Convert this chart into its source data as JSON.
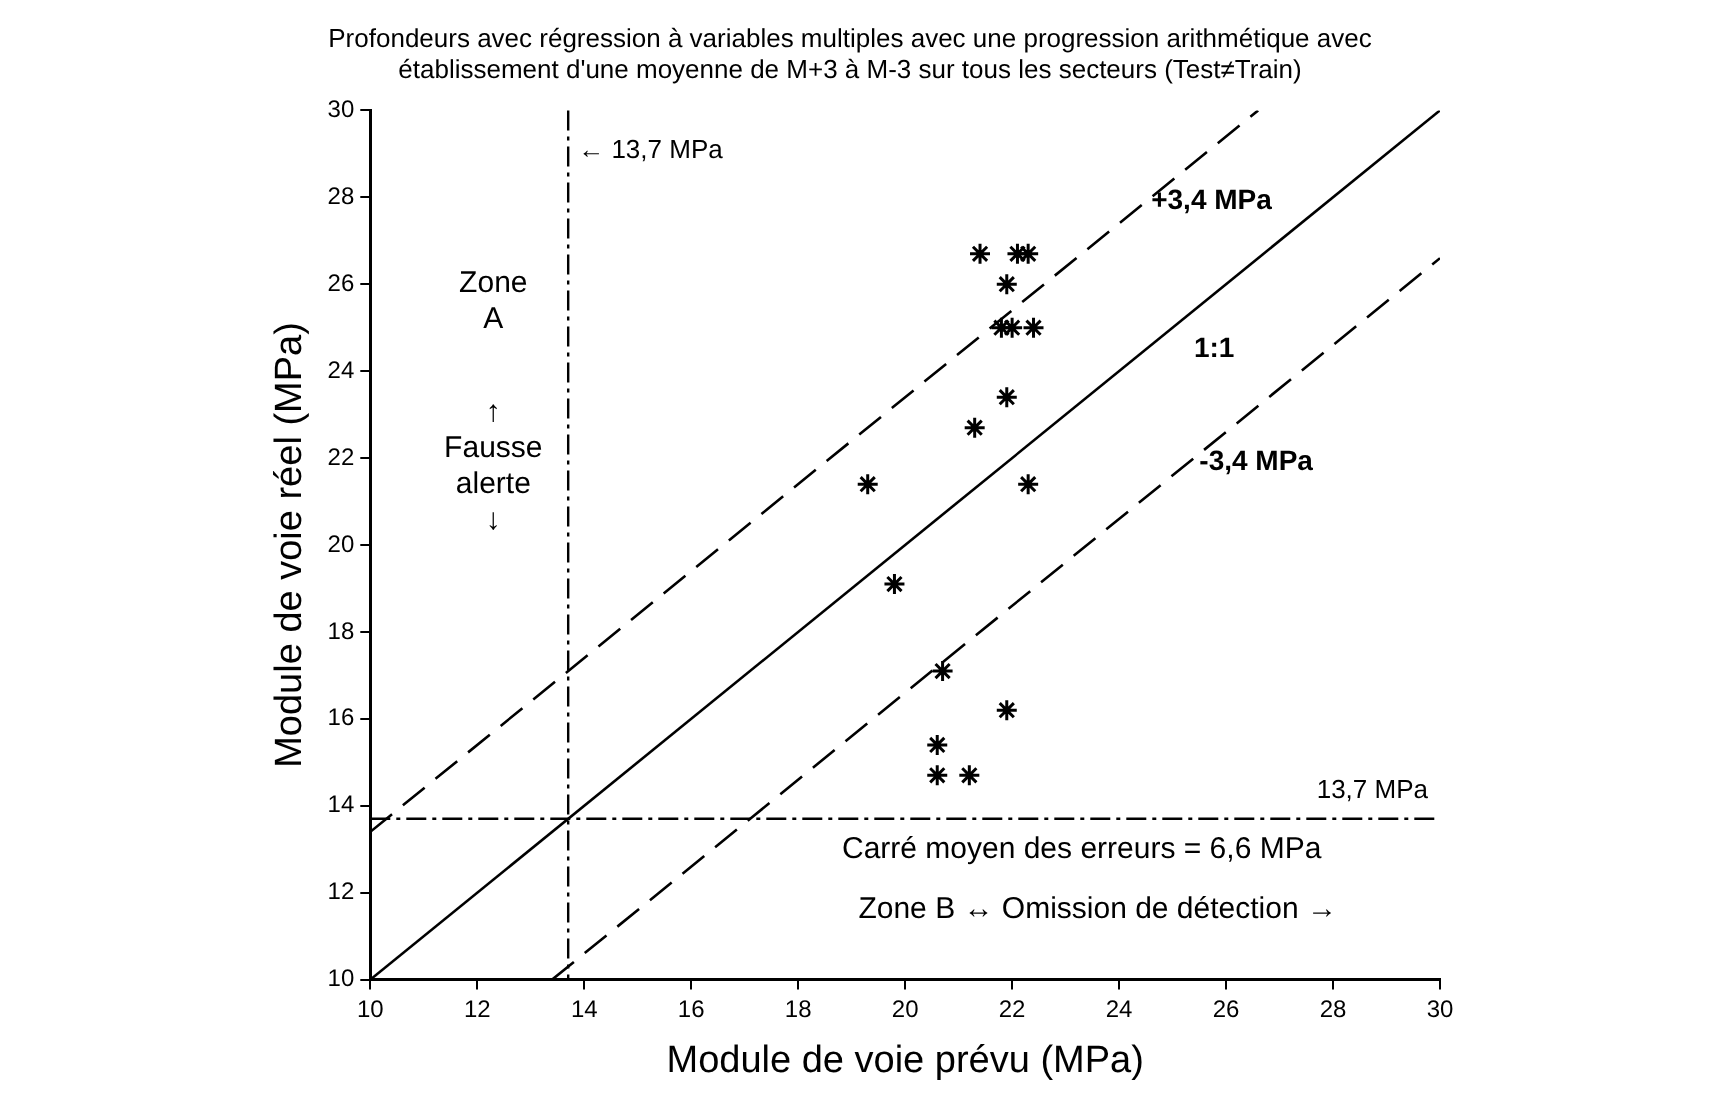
{
  "chart_data": {
    "type": "scatter",
    "title": "Profondeurs avec régression à variables multiples avec une progression arithmétique avec\nétablissement d'une moyenne de M+3 à M-3 sur tous les secteurs (Test≠Train)",
    "xlabel": "Module de voie prévu (MPa)",
    "ylabel": "Module de voie réel (MPa)",
    "xlim": [
      10,
      30
    ],
    "ylim": [
      10,
      30
    ],
    "xticks": [
      10,
      12,
      14,
      16,
      18,
      20,
      22,
      24,
      26,
      28,
      30
    ],
    "yticks": [
      10,
      12,
      14,
      16,
      18,
      20,
      22,
      24,
      26,
      28,
      30
    ],
    "grid": false,
    "legend": false,
    "marker": "cross",
    "series": [
      {
        "color": "#000000",
        "x": [
          21.4,
          22.1,
          22.3,
          21.9,
          21.8,
          22.0,
          22.4,
          21.9,
          21.3,
          22.3,
          19.3,
          19.8,
          20.7,
          21.9,
          20.6,
          20.6,
          21.2
        ],
        "values": [
          26.7,
          26.7,
          26.7,
          26.0,
          25.0,
          25.0,
          25.0,
          23.4,
          22.7,
          21.4,
          21.4,
          19.1,
          17.1,
          16.2,
          15.4,
          14.7,
          14.7
        ]
      },
      {
        "type": "line",
        "name": "+3,4 MPa",
        "color": "#000000",
        "line_style": "dashed",
        "marker": "none",
        "x": [
          10,
          26.6
        ],
        "values": [
          13.4,
          30
        ]
      },
      {
        "type": "line",
        "name": "1:1",
        "color": "#000000",
        "line_style": "solid",
        "marker": "none",
        "x": [
          10,
          30
        ],
        "values": [
          10,
          30
        ]
      },
      {
        "type": "line",
        "name": "-3,4 MPa",
        "color": "#000000",
        "line_style": "dashed",
        "marker": "none",
        "x": [
          13.4,
          30
        ],
        "values": [
          10,
          26.6
        ]
      }
    ],
    "ref_lines": [
      {
        "axis": "x",
        "value": 13.7,
        "label": "← 13,7 MPa",
        "line_style": "dashed"
      },
      {
        "axis": "y",
        "value": 13.7,
        "label": "13,7 MPa",
        "line_style": "dashed"
      }
    ],
    "annotations": [
      "Zone\nA",
      "↑\nFausse\nalerte\n↓",
      "Carré moyen des erreurs = 6,6 MPa",
      "Zone B ↔ Omission de détection →"
    ]
  }
}
